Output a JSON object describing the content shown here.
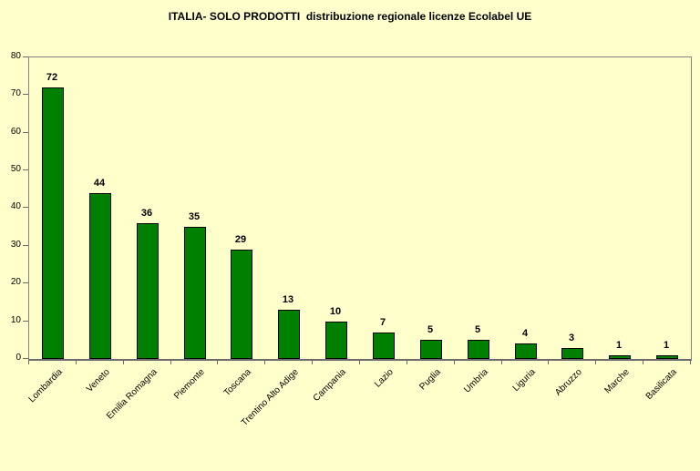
{
  "chart_data": {
    "type": "bar",
    "title": "ITALIA- SOLO PRODOTTI  distribuzione regionale licenze Ecolabel UE",
    "categories": [
      "Lombardia",
      "Veneto",
      "Emilia Romagna",
      "Piemonte",
      "Toscana",
      "Trentino Alto Adige",
      "Campania",
      "Lazio",
      "Puglia",
      "Umbria",
      "Liguria",
      "Abruzzo",
      "Marche",
      "Basilicata"
    ],
    "values": [
      72,
      44,
      36,
      35,
      29,
      13,
      10,
      7,
      5,
      5,
      4,
      3,
      1,
      1
    ],
    "xlabel": "",
    "ylabel": "",
    "ylim": [
      0,
      80
    ],
    "yticks": [
      0,
      10,
      20,
      30,
      40,
      50,
      60,
      70,
      80
    ],
    "grid": false,
    "legend_position": "none",
    "data_labels": true,
    "colors": {
      "background": "#FFFFCC",
      "bar_fill": "#008000",
      "bar_border": "#000000",
      "plot_border": "#848284",
      "axis_line": "#6b6b6b",
      "text": "#000000"
    }
  }
}
